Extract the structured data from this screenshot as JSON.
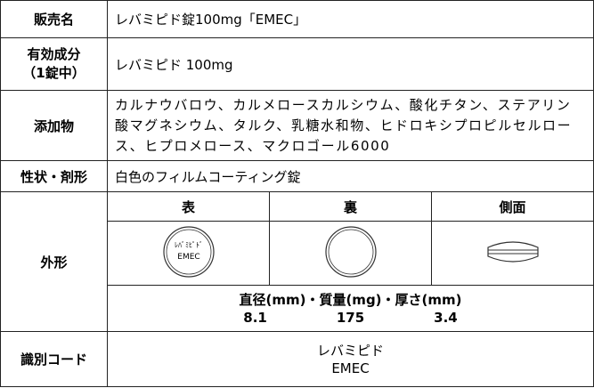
{
  "table": {
    "rows": [
      {
        "label": "販売名",
        "value": "レバミピド錠100mg「EMEC」"
      },
      {
        "label": "有効成分\n（1錠中）",
        "value": "レバミピド 100mg"
      },
      {
        "label": "添加物",
        "value": "カルナウバロウ、カルメロースカルシウム、酸化チタン、ステアリン酸マグネシウム、タルク、乳糖水和物、ヒドロキシプロピルセルロース、ヒプロメロース、マクロゴール6000"
      },
      {
        "label": "性状・剤形",
        "value": "白色のフィルムコーティング錠"
      },
      {
        "label": "外形",
        "views": [
          "表",
          "裏",
          "側面"
        ],
        "front_imprint": [
          "ﾚﾊﾞﾐﾋﾟﾄﾞ",
          "EMEC"
        ],
        "dimensions_label": "直径(mm)・質量(mg)・厚さ(mm)",
        "dimensions": [
          8.1,
          175,
          3.4
        ]
      },
      {
        "label": "識別コード",
        "value": [
          "レバミピド",
          "EMEC"
        ]
      }
    ]
  }
}
